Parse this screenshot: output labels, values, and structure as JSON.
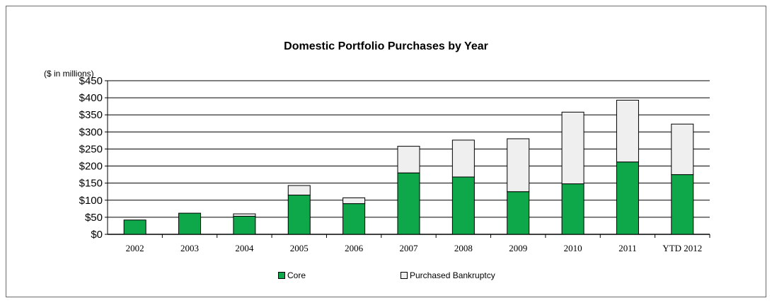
{
  "chart_data": {
    "type": "bar",
    "stacked": true,
    "title": "Domestic Portfolio Purchases by Year",
    "ylabel": "($ in millions)",
    "xlabel": "",
    "categories": [
      "2002",
      "2003",
      "2004",
      "2005",
      "2006",
      "2007",
      "2008",
      "2009",
      "2010",
      "2011",
      "YTD 2012"
    ],
    "ylim": [
      0,
      450
    ],
    "yticks": [
      0,
      50,
      100,
      150,
      200,
      250,
      300,
      350,
      400,
      450
    ],
    "ytick_labels": [
      "$0",
      "$50",
      "$100",
      "$150",
      "$200",
      "$250",
      "$300",
      "$350",
      "$400",
      "$450"
    ],
    "grid": true,
    "legend_position": "bottom",
    "series": [
      {
        "name": "Core",
        "color": "#0ea84a",
        "values": [
          42,
          62,
          53,
          115,
          90,
          180,
          168,
          125,
          148,
          212,
          175
        ]
      },
      {
        "name": "Purchased Bankruptcy",
        "color": "#efefef",
        "values": [
          0,
          0,
          7,
          28,
          17,
          78,
          108,
          155,
          210,
          181,
          148
        ]
      }
    ]
  }
}
